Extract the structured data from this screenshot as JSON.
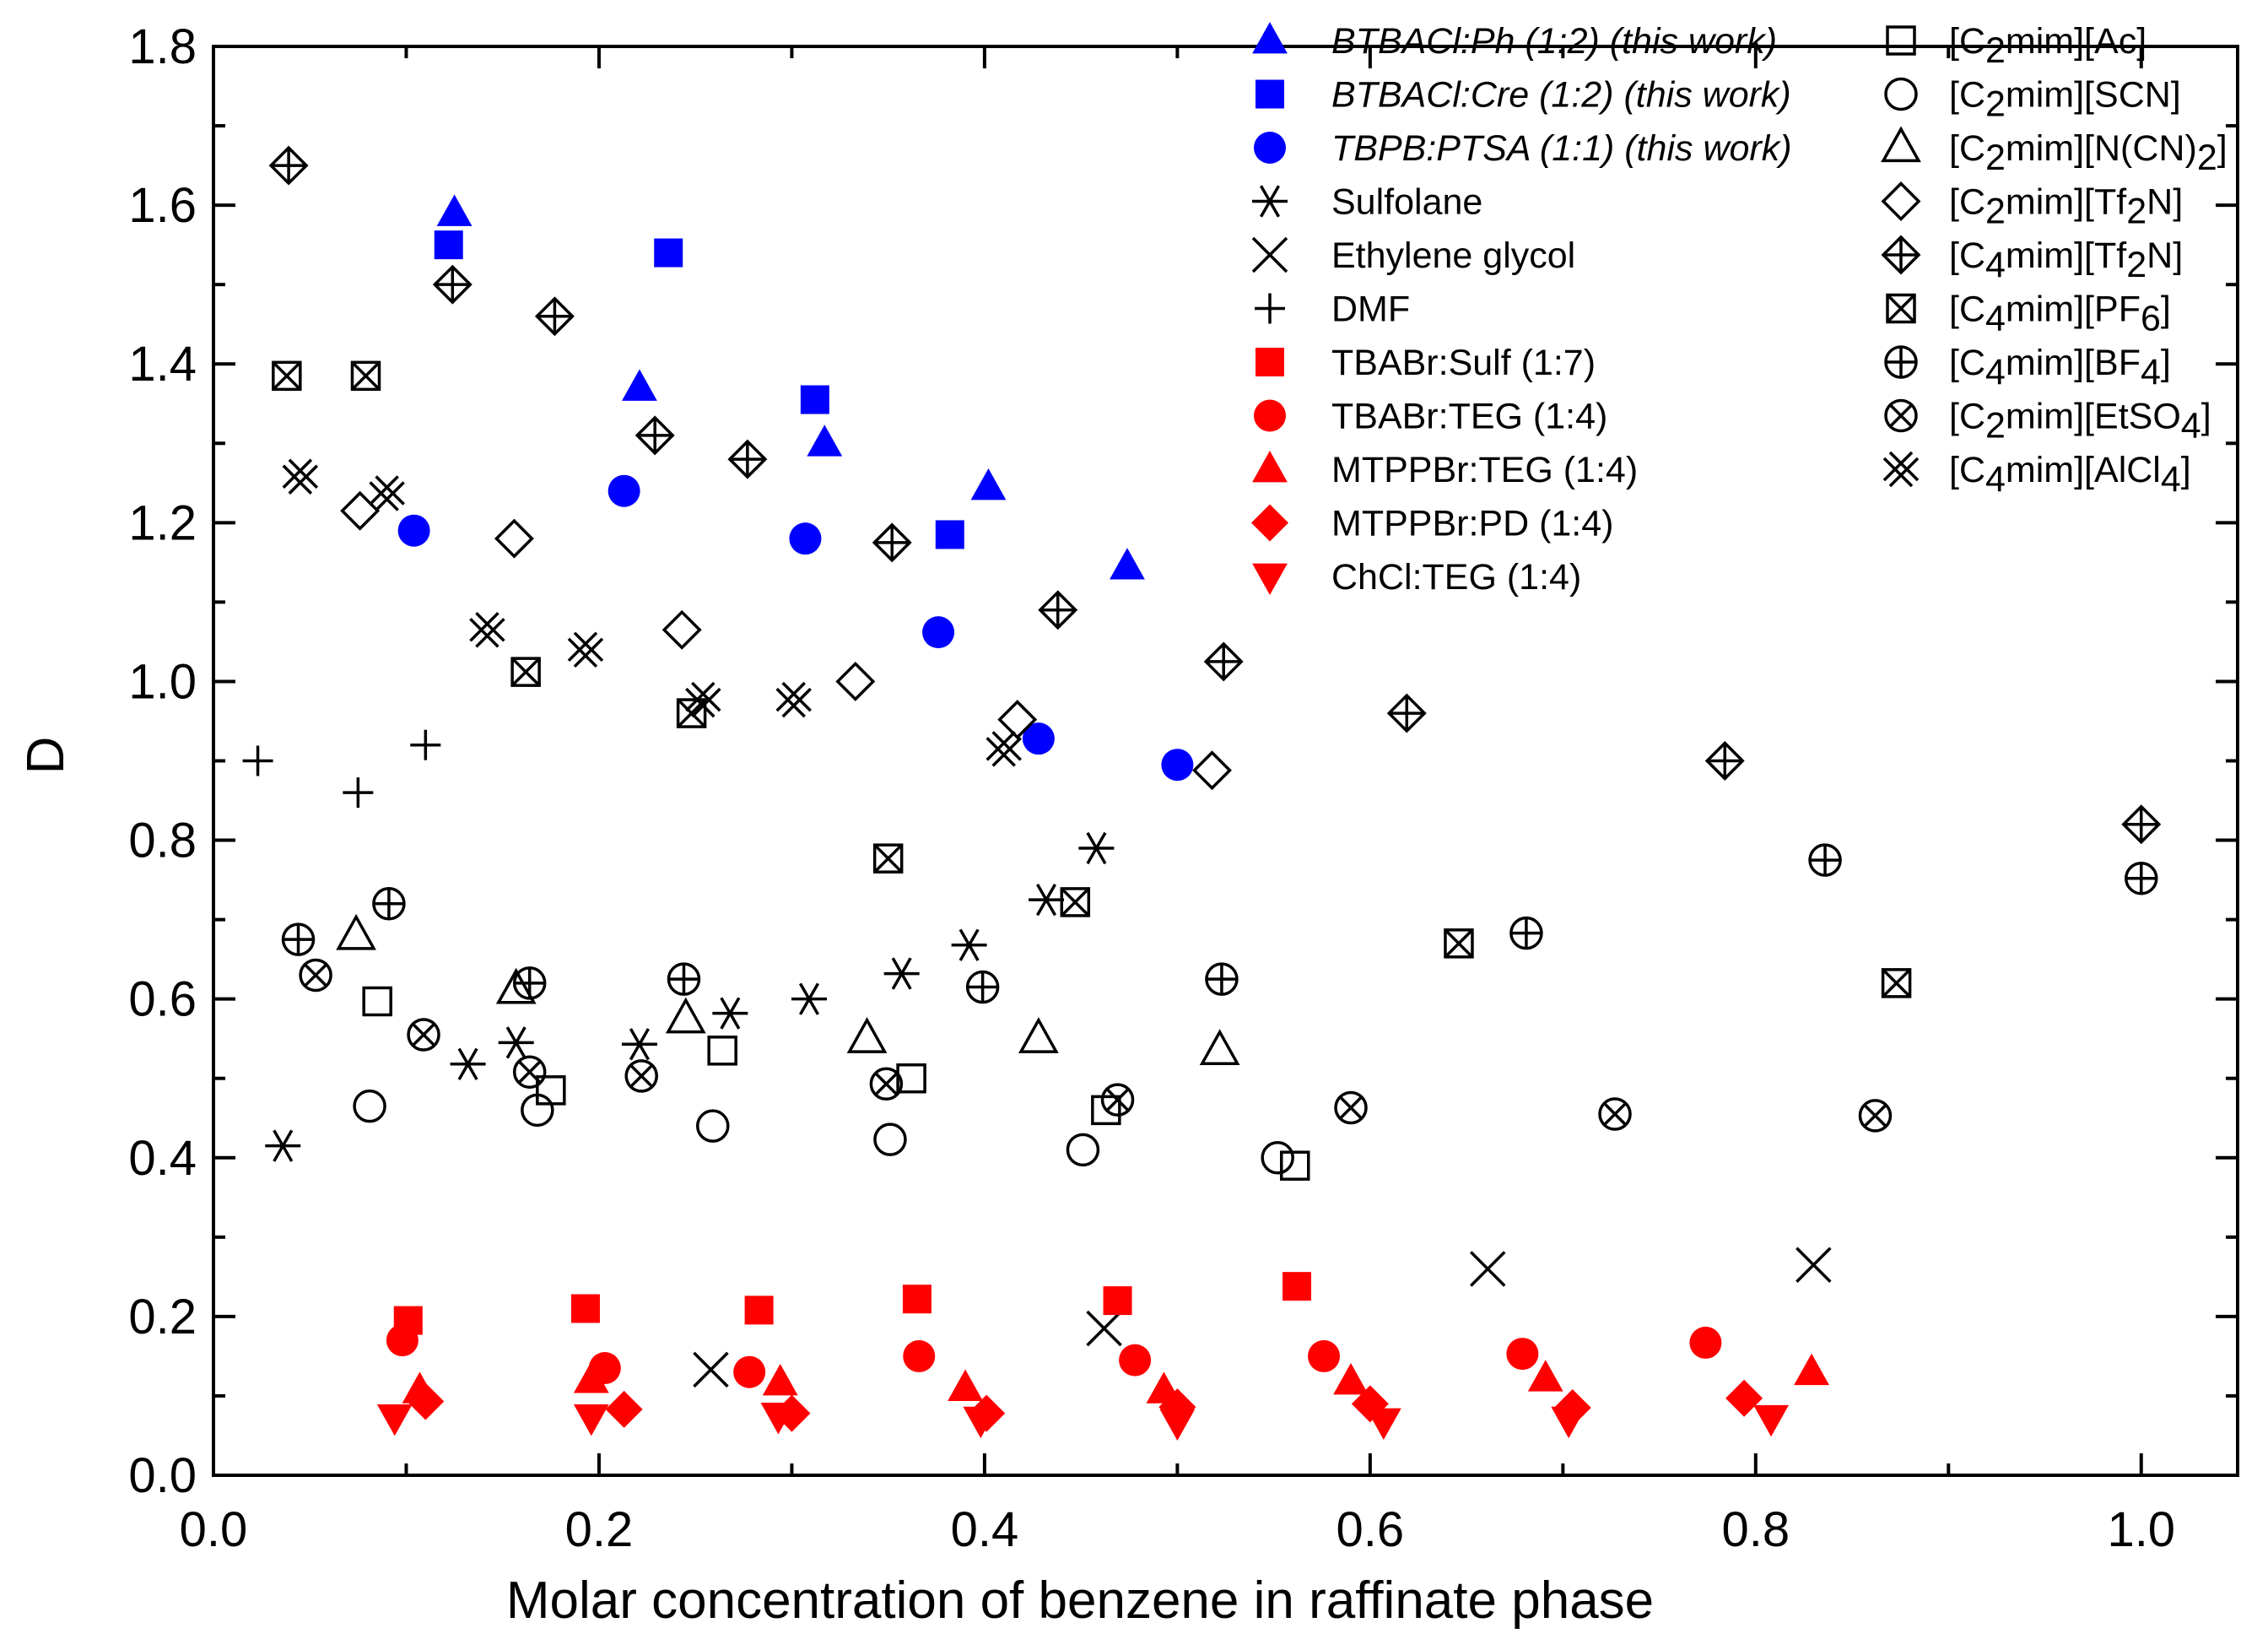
{
  "chart_data": {
    "type": "scatter",
    "xlabel": "Molar concentration of benzene in raffinate phase",
    "ylabel": "D",
    "xlim": [
      0.0,
      1.05
    ],
    "ylim": [
      0.0,
      1.8
    ],
    "xticks": [
      "0.0",
      "0.2",
      "0.4",
      "0.6",
      "0.8",
      "1.0"
    ],
    "yticks": [
      "0.0",
      "0.2",
      "0.4",
      "0.6",
      "0.8",
      "1.0",
      "1.2",
      "1.4",
      "1.6",
      "1.8"
    ],
    "legend_left": [
      {
        "label": "BTBACl:Ph (1:2) (this work)",
        "series": "btbacl_ph"
      },
      {
        "label": "BTBACl:Cre (1:2) (this work)",
        "series": "btbacl_cre"
      },
      {
        "label": "TBPB:PTSA (1:1) (this work)",
        "series": "tbpb_ptsa"
      },
      {
        "label": "Sulfolane",
        "series": "sulfolane"
      },
      {
        "label": "Ethylene glycol",
        "series": "ethylene_glycol"
      },
      {
        "label": "DMF",
        "series": "dmf"
      },
      {
        "label": "TBABr:Sulf (1:7)",
        "series": "tbabr_sulf"
      },
      {
        "label": "TBABr:TEG (1:4)",
        "series": "tbabr_teg"
      },
      {
        "label": "MTPPBr:TEG (1:4)",
        "series": "mtppbr_teg"
      },
      {
        "label": "MTPPBr:PD (1:4)",
        "series": "mtppbr_pd"
      },
      {
        "label": "ChCl:TEG (1:4)",
        "series": "chcl_teg"
      }
    ],
    "legend_right": [
      {
        "prefix": "[C",
        "sub": "2",
        "suffix": "mim][Ac]",
        "series": "c2mim_ac"
      },
      {
        "prefix": "[C",
        "sub": "2",
        "suffix": "mim][SCN]",
        "series": "c2mim_scn"
      },
      {
        "prefix": "[C",
        "sub": "2",
        "suffix": "mim][N(CN)",
        "sub2": "2",
        "suffix2": "]",
        "series": "c2mim_ncn2"
      },
      {
        "prefix": "[C",
        "sub": "2",
        "suffix": "mim][Tf",
        "sub2": "2",
        "suffix2": "N]",
        "series": "c2mim_tf2n"
      },
      {
        "prefix": "[C",
        "sub": "4",
        "suffix": "mim][Tf",
        "sub2": "2",
        "suffix2": "N]",
        "series": "c4mim_tf2n"
      },
      {
        "prefix": "[C",
        "sub": "4",
        "suffix": "mim][PF",
        "sub2": "6",
        "suffix2": "]",
        "series": "c4mim_pf6"
      },
      {
        "prefix": "[C",
        "sub": "4",
        "suffix": "mim][BF",
        "sub2": "4",
        "suffix2": "]",
        "series": "c4mim_bf4"
      },
      {
        "prefix": "[C",
        "sub": "2",
        "suffix": "mim][EtSO",
        "sub2": "4",
        "suffix2": "]",
        "series": "c2mim_etso4"
      },
      {
        "prefix": "[C",
        "sub": "4",
        "suffix": "mim][AlCl",
        "sub2": "4",
        "suffix2": "]",
        "series": "c4mim_alcl4"
      }
    ],
    "series": [
      {
        "id": "btbacl_ph",
        "name": "BTBACl:Ph (1:2) (this work)",
        "marker": "triangle-up",
        "color": "#0000FF",
        "filled": true,
        "x": [
          0.125,
          0.221,
          0.317,
          0.402,
          0.474
        ],
        "y": [
          1.59,
          1.37,
          1.3,
          1.245,
          1.145
        ]
      },
      {
        "id": "btbacl_cre",
        "name": "BTBACl:Cre (1:2) (this work)",
        "marker": "square",
        "color": "#0000FF",
        "filled": true,
        "x": [
          0.122,
          0.236,
          0.312,
          0.382
        ],
        "y": [
          1.55,
          1.54,
          1.355,
          1.185
        ]
      },
      {
        "id": "tbpb_ptsa",
        "name": "TBPB:PTSA (1:1) (this work)",
        "marker": "circle",
        "color": "#0000FF",
        "filled": true,
        "x": [
          0.104,
          0.213,
          0.307,
          0.376,
          0.428,
          0.5
        ],
        "y": [
          1.19,
          1.24,
          1.18,
          1.062,
          0.928,
          0.895
        ]
      },
      {
        "id": "sulfolane",
        "name": "Sulfolane",
        "marker": "asterisk",
        "color": "#000000",
        "filled": false,
        "x": [
          0.036,
          0.132,
          0.157,
          0.221,
          0.268,
          0.309,
          0.357,
          0.392,
          0.432,
          0.458
        ],
        "y": [
          0.415,
          0.518,
          0.545,
          0.543,
          0.582,
          0.6,
          0.632,
          0.668,
          0.725,
          0.79
        ]
      },
      {
        "id": "ethylene_glycol",
        "name": "Ethylene glycol",
        "marker": "x",
        "color": "#000000",
        "filled": false,
        "x": [
          0.258,
          0.462,
          0.661,
          0.83
        ],
        "y": [
          0.133,
          0.185,
          0.26,
          0.265
        ]
      },
      {
        "id": "dmf",
        "name": "DMF",
        "marker": "plus",
        "color": "#000000",
        "filled": false,
        "x": [
          0.023,
          0.075,
          0.11
        ],
        "y": [
          0.9,
          0.86,
          0.92
        ]
      },
      {
        "id": "tbabr_sulf",
        "name": "TBABr:Sulf (1:7)",
        "marker": "square",
        "color": "#FF0000",
        "filled": true,
        "x": [
          0.101,
          0.193,
          0.283,
          0.365,
          0.469,
          0.562
        ],
        "y": [
          0.195,
          0.21,
          0.208,
          0.222,
          0.22,
          0.238
        ]
      },
      {
        "id": "tbabr_teg",
        "name": "TBABr:TEG (1:4)",
        "marker": "circle",
        "color": "#FF0000",
        "filled": true,
        "x": [
          0.098,
          0.203,
          0.278,
          0.366,
          0.478,
          0.576,
          0.679,
          0.774
        ],
        "y": [
          0.17,
          0.135,
          0.13,
          0.15,
          0.145,
          0.15,
          0.153,
          0.167
        ]
      },
      {
        "id": "mtppbr_teg",
        "name": "MTPPBr:TEG (1:4)",
        "marker": "triangle-up",
        "color": "#FF0000",
        "filled": true,
        "x": [
          0.107,
          0.196,
          0.294,
          0.39,
          0.493,
          0.59,
          0.691,
          0.829
        ],
        "y": [
          0.107,
          0.12,
          0.117,
          0.11,
          0.107,
          0.118,
          0.122,
          0.13
        ]
      },
      {
        "id": "mtppbr_pd",
        "name": "MTPPBr:PD (1:4)",
        "marker": "diamond",
        "color": "#FF0000",
        "filled": true,
        "x": [
          0.11,
          0.213,
          0.3,
          0.401,
          0.5,
          0.6,
          0.705,
          0.794
        ],
        "y": [
          0.093,
          0.083,
          0.078,
          0.078,
          0.086,
          0.09,
          0.085,
          0.097
        ]
      },
      {
        "id": "chcl_teg",
        "name": "ChCl:TEG (1:4)",
        "marker": "triangle-down",
        "color": "#FF0000",
        "filled": true,
        "x": [
          0.094,
          0.196,
          0.293,
          0.398,
          0.5,
          0.607,
          0.703,
          0.808
        ],
        "y": [
          0.073,
          0.073,
          0.075,
          0.07,
          0.067,
          0.068,
          0.07,
          0.072
        ]
      },
      {
        "id": "c2mim_ac",
        "name": "[C2mim][Ac]",
        "marker": "square",
        "color": "#000000",
        "filled": false,
        "x": [
          0.085,
          0.175,
          0.264,
          0.362,
          0.463,
          0.561
        ],
        "y": [
          0.597,
          0.485,
          0.535,
          0.5,
          0.46,
          0.39
        ]
      },
      {
        "id": "c2mim_scn",
        "name": "[C2mim][SCN]",
        "marker": "circle",
        "color": "#000000",
        "filled": false,
        "x": [
          0.081,
          0.168,
          0.259,
          0.351,
          0.451,
          0.552
        ],
        "y": [
          0.465,
          0.46,
          0.44,
          0.423,
          0.41,
          0.4
        ]
      },
      {
        "id": "c2mim_ncn2",
        "name": "[C2mim][N(CN)2]",
        "marker": "triangle-up-open",
        "color": "#000000",
        "filled": false,
        "x": [
          0.074,
          0.157,
          0.245,
          0.339,
          0.428,
          0.522
        ],
        "y": [
          0.68,
          0.612,
          0.575,
          0.55,
          0.55,
          0.535
        ]
      },
      {
        "id": "c2mim_tf2n",
        "name": "[C2mim][Tf2N]",
        "marker": "diamond-open",
        "color": "#000000",
        "filled": false,
        "x": [
          0.076,
          0.156,
          0.243,
          0.333,
          0.417,
          0.518
        ],
        "y": [
          1.215,
          1.18,
          1.065,
          1.0,
          0.952,
          0.888
        ]
      },
      {
        "id": "c4mim_tf2n",
        "name": "[C4mim][Tf2N]",
        "marker": "diamond-plus",
        "color": "#000000",
        "filled": false,
        "x": [
          0.039,
          0.124,
          0.177,
          0.229,
          0.277,
          0.352,
          0.438,
          0.524,
          0.619,
          0.784,
          1.0
        ],
        "y": [
          1.65,
          1.5,
          1.46,
          1.31,
          1.28,
          1.175,
          1.09,
          1.025,
          0.96,
          0.9,
          0.82
        ]
      },
      {
        "id": "c4mim_pf6",
        "name": "[C4mim][PF6]",
        "marker": "square-x",
        "color": "#000000",
        "filled": false,
        "x": [
          0.038,
          0.079,
          0.162,
          0.248,
          0.35,
          0.447,
          0.646,
          0.873
        ],
        "y": [
          1.385,
          1.385,
          1.012,
          0.96,
          0.777,
          0.722,
          0.67,
          0.62
        ]
      },
      {
        "id": "c4mim_bf4",
        "name": "[C4mim][BF4]",
        "marker": "circle-plus",
        "color": "#000000",
        "filled": false,
        "x": [
          0.044,
          0.091,
          0.164,
          0.244,
          0.399,
          0.523,
          0.681,
          0.836,
          1.0
        ],
        "y": [
          0.675,
          0.72,
          0.62,
          0.625,
          0.615,
          0.625,
          0.683,
          0.775,
          0.752
        ]
      },
      {
        "id": "c2mim_etso4",
        "name": "[C2mim][EtSO4]",
        "marker": "circle-x",
        "color": "#000000",
        "filled": false,
        "x": [
          0.053,
          0.109,
          0.164,
          0.222,
          0.349,
          0.469,
          0.59,
          0.727,
          0.862
        ],
        "y": [
          0.63,
          0.555,
          0.508,
          0.503,
          0.493,
          0.473,
          0.463,
          0.455,
          0.453
        ]
      },
      {
        "id": "c4mim_alcl4",
        "name": "[C4mim][AlCl4]",
        "marker": "double-x",
        "color": "#000000",
        "filled": false,
        "x": [
          0.045,
          0.09,
          0.142,
          0.193,
          0.254,
          0.301,
          0.41
        ],
        "y": [
          1.258,
          1.237,
          1.065,
          1.04,
          0.977,
          0.977,
          0.915
        ]
      }
    ]
  }
}
